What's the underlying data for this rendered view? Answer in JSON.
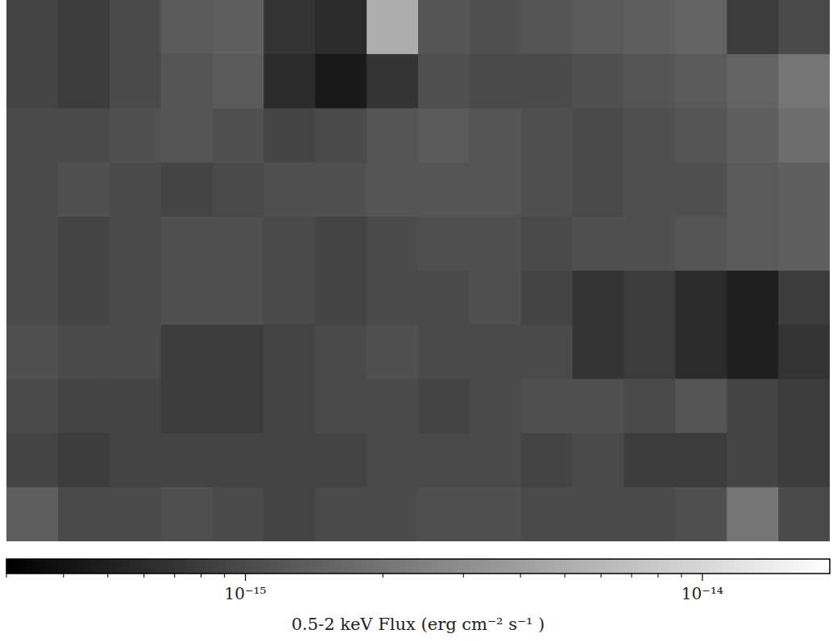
{
  "chart_data": {
    "type": "heatmap",
    "log": true,
    "tick_labels": false,
    "cells": [
      [
        9e-16,
        8e-16,
        1e-15,
        1.3e-15,
        1.4e-15,
        7e-16,
        6e-16,
        5e-15,
        1.2e-15,
        1.1e-15,
        1.2e-15,
        1.3e-15,
        1.4e-15,
        1.5e-15,
        8e-16,
        1e-15
      ],
      [
        9e-16,
        8e-16,
        1e-15,
        1.2e-15,
        1.3e-15,
        6e-16,
        4.5e-16,
        7e-16,
        1.1e-15,
        1e-15,
        1e-15,
        1.1e-15,
        1.2e-15,
        1.3e-15,
        1.5e-15,
        2e-15
      ],
      [
        1e-15,
        1e-15,
        1.1e-15,
        1.2e-15,
        1.1e-15,
        9e-16,
        1e-15,
        1.2e-15,
        1.3e-15,
        1.2e-15,
        1.1e-15,
        1e-15,
        1.1e-15,
        1.2e-15,
        1.4e-15,
        1.8e-15
      ],
      [
        1e-15,
        1.1e-15,
        1e-15,
        9e-16,
        1e-15,
        1.1e-15,
        1.1e-15,
        1.2e-15,
        1.2e-15,
        1.2e-15,
        1.1e-15,
        1e-15,
        1.1e-15,
        1.1e-15,
        1.3e-15,
        1.4e-15
      ],
      [
        1e-15,
        9e-16,
        1e-15,
        1.1e-15,
        1.1e-15,
        1e-15,
        9e-16,
        1e-15,
        1.1e-15,
        1.1e-15,
        1e-15,
        1.1e-15,
        1.1e-15,
        1.2e-15,
        1.3e-15,
        1.4e-15
      ],
      [
        1e-15,
        9e-16,
        1e-15,
        1.1e-15,
        1.1e-15,
        1e-15,
        9e-16,
        1e-15,
        1e-15,
        1.1e-15,
        9e-16,
        7e-16,
        8e-16,
        6e-16,
        5e-16,
        8e-16
      ],
      [
        1.1e-15,
        1e-15,
        1e-15,
        8e-16,
        8e-16,
        9e-16,
        1e-15,
        1.1e-15,
        1e-15,
        1e-15,
        1e-15,
        7e-16,
        8e-16,
        6e-16,
        5e-16,
        7e-16
      ],
      [
        1e-15,
        9e-16,
        9e-16,
        8e-16,
        8e-16,
        9e-16,
        1e-15,
        1e-15,
        9e-16,
        1e-15,
        1.1e-15,
        1.1e-15,
        1e-15,
        1.2e-15,
        9e-16,
        8e-16
      ],
      [
        9e-16,
        8e-16,
        9e-16,
        9e-16,
        9e-16,
        9e-16,
        9e-16,
        1e-15,
        1e-15,
        1e-15,
        9e-16,
        1e-15,
        8e-16,
        8e-16,
        9e-16,
        8e-16
      ],
      [
        1.4e-15,
        1e-15,
        1e-15,
        1.1e-15,
        1e-15,
        9e-16,
        1e-15,
        1e-15,
        1.1e-15,
        1.1e-15,
        1e-15,
        1e-15,
        1e-15,
        1.1e-15,
        2e-15,
        1e-15
      ]
    ],
    "colorbar": {
      "range": [
        3e-16,
        1.9e-14
      ],
      "ticks": [
        {
          "value": 1e-15,
          "label": "10⁻¹⁵"
        },
        {
          "value": 1e-14,
          "label": "10⁻¹⁴"
        }
      ],
      "label": "0.5-2 keV Flux (erg cm⁻² s⁻¹ )"
    }
  }
}
